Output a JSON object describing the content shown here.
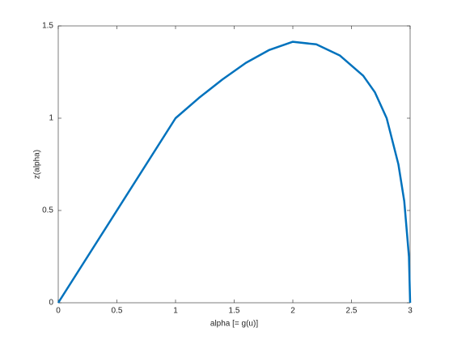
{
  "chart_data": {
    "type": "line",
    "x_label": "alpha [= g(u)]",
    "y_label": "z(alpha)",
    "x": [
      0,
      1,
      1.2,
      1.4,
      1.6,
      1.8,
      2.0,
      2.2,
      2.4,
      2.6,
      2.7,
      2.8,
      2.9,
      2.95,
      2.99,
      3
    ],
    "series": [
      {
        "color": "#0072bd",
        "values": [
          0,
          1,
          1.11,
          1.21,
          1.3,
          1.37,
          1.414,
          1.4,
          1.34,
          1.23,
          1.14,
          1.0,
          0.75,
          0.55,
          0.25,
          0
        ]
      }
    ],
    "xlim": [
      0,
      3
    ],
    "ylim": [
      0,
      1.5
    ],
    "xticks": [
      0,
      0.5,
      1,
      1.5,
      2,
      2.5,
      3
    ],
    "yticks": [
      0,
      0.5,
      1,
      1.5
    ],
    "grid": false
  }
}
